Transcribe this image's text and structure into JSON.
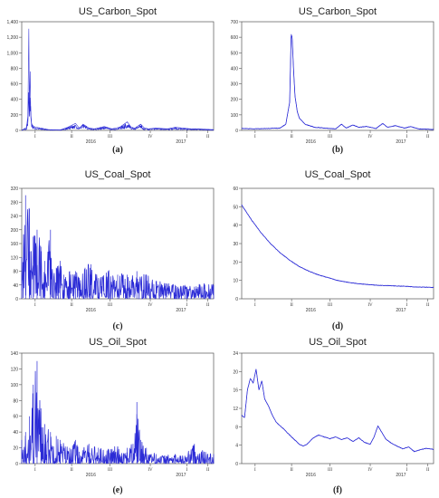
{
  "chart_data": [
    {
      "type": "line",
      "panel_label": "(a)",
      "title": "US_Carbon_Spot",
      "x_quarter_labels": [
        "I",
        "II",
        "III",
        "IV",
        "I",
        "II"
      ],
      "x_year_labels": [
        "2016",
        "2017"
      ],
      "ylim": [
        0,
        1400
      ],
      "yticks": [
        0,
        200,
        400,
        600,
        800,
        1000,
        1200,
        1400
      ],
      "ytick_labels": [
        "0",
        "200",
        "400",
        "600",
        "800",
        "1,000",
        "1,200",
        "1,400"
      ],
      "line_color": "#2b2bd6",
      "series": [
        {
          "style": "spiky",
          "x": [
            0.0,
            0.025,
            0.032,
            0.037,
            0.04,
            0.044,
            0.047,
            0.051,
            0.056,
            0.062,
            0.075,
            0.1,
            0.14,
            0.2,
            0.24,
            0.28,
            0.3,
            0.32,
            0.35,
            0.38,
            0.43,
            0.47,
            0.51,
            0.55,
            0.57,
            0.59,
            0.62,
            0.64,
            0.66,
            0.7,
            0.76,
            0.8,
            0.84,
            0.88,
            0.92,
            1.0
          ],
          "y": [
            0,
            40,
            180,
            1310,
            300,
            760,
            230,
            90,
            70,
            50,
            40,
            30,
            10,
            5,
            40,
            90,
            30,
            80,
            30,
            20,
            50,
            20,
            40,
            110,
            40,
            30,
            80,
            30,
            20,
            30,
            20,
            40,
            30,
            20,
            20,
            10
          ]
        }
      ]
    },
    {
      "type": "line",
      "panel_label": "(b)",
      "title": "US_Carbon_Spot",
      "x_quarter_labels": [
        "I",
        "II",
        "III",
        "IV",
        "I",
        "II"
      ],
      "x_year_labels": [
        "2016",
        "2017"
      ],
      "ylim": [
        0,
        700
      ],
      "yticks": [
        0,
        100,
        200,
        300,
        400,
        500,
        600,
        700
      ],
      "ytick_labels": [
        "0",
        "100",
        "200",
        "300",
        "400",
        "500",
        "600",
        "700"
      ],
      "line_color": "#2b2bd6",
      "series": [
        {
          "style": "smooth",
          "x": [
            0.0,
            0.06,
            0.13,
            0.2,
            0.23,
            0.25,
            0.258,
            0.263,
            0.27,
            0.278,
            0.29,
            0.3,
            0.33,
            0.38,
            0.43,
            0.49,
            0.52,
            0.545,
            0.58,
            0.61,
            0.65,
            0.7,
            0.735,
            0.76,
            0.8,
            0.85,
            0.88,
            0.92,
            0.96,
            1.0
          ],
          "y": [
            12,
            10,
            12,
            15,
            40,
            180,
            620,
            600,
            400,
            220,
            120,
            80,
            40,
            20,
            15,
            10,
            40,
            15,
            35,
            20,
            25,
            12,
            45,
            20,
            30,
            15,
            25,
            10,
            8,
            6
          ]
        }
      ]
    },
    {
      "type": "line",
      "panel_label": "(c)",
      "title": "US_Coal_Spot",
      "x_quarter_labels": [
        "I",
        "II",
        "III",
        "IV",
        "I",
        "II"
      ],
      "x_year_labels": [
        "2016",
        "2017"
      ],
      "ylim": [
        0,
        320
      ],
      "yticks": [
        0,
        40,
        80,
        120,
        160,
        200,
        240,
        280,
        320
      ],
      "ytick_labels": [
        "0",
        "40",
        "80",
        "120",
        "160",
        "200",
        "240",
        "280",
        "320"
      ],
      "line_color": "#2b2bd6",
      "series": [
        {
          "style": "noisy",
          "x": [
            0.0,
            0.02,
            0.04,
            0.06,
            0.08,
            0.1,
            0.12,
            0.15,
            0.18,
            0.2,
            0.22,
            0.25,
            0.28,
            0.3,
            0.33,
            0.36,
            0.4,
            0.45,
            0.5,
            0.55,
            0.6,
            0.65,
            0.7,
            0.75,
            0.8,
            0.85,
            0.9,
            0.95,
            1.0
          ],
          "y": [
            120,
            300,
            260,
            180,
            200,
            150,
            110,
            200,
            90,
            110,
            70,
            80,
            80,
            60,
            90,
            100,
            60,
            80,
            70,
            70,
            80,
            70,
            50,
            45,
            40,
            40,
            35,
            45,
            40
          ]
        }
      ]
    },
    {
      "type": "line",
      "panel_label": "(d)",
      "title": "US_Coal_Spot",
      "x_quarter_labels": [
        "I",
        "II",
        "III",
        "IV",
        "I",
        "II"
      ],
      "x_year_labels": [
        "2016",
        "2017"
      ],
      "ylim": [
        0,
        60
      ],
      "yticks": [
        0,
        10,
        20,
        30,
        40,
        50,
        60
      ],
      "ytick_labels": [
        "0",
        "10",
        "20",
        "30",
        "40",
        "50",
        "60"
      ],
      "line_color": "#2b2bd6",
      "series": [
        {
          "style": "smooth",
          "x": [
            0.0,
            0.05,
            0.1,
            0.15,
            0.2,
            0.25,
            0.3,
            0.35,
            0.4,
            0.45,
            0.5,
            0.55,
            0.6,
            0.65,
            0.7,
            0.75,
            0.8,
            0.85,
            0.9,
            0.95,
            1.0
          ],
          "y": [
            51,
            43,
            36,
            30,
            25,
            21,
            17.5,
            15,
            13,
            11.5,
            10,
            9,
            8.3,
            7.8,
            7.4,
            7.2,
            7.0,
            6.8,
            6.5,
            6.3,
            6.2
          ]
        }
      ]
    },
    {
      "type": "line",
      "panel_label": "(e)",
      "title": "US_Oil_Spot",
      "x_quarter_labels": [
        "I",
        "II",
        "III",
        "IV",
        "I",
        "II"
      ],
      "x_year_labels": [
        "2016",
        "2017"
      ],
      "ylim": [
        0,
        140
      ],
      "yticks": [
        0,
        20,
        40,
        60,
        80,
        100,
        120,
        140
      ],
      "ytick_labels": [
        "0",
        "20",
        "40",
        "60",
        "80",
        "100",
        "120",
        "140"
      ],
      "line_color": "#2b2bd6",
      "series": [
        {
          "style": "noisy",
          "x": [
            0.0,
            0.02,
            0.04,
            0.06,
            0.08,
            0.1,
            0.12,
            0.15,
            0.18,
            0.2,
            0.25,
            0.28,
            0.3,
            0.35,
            0.4,
            0.45,
            0.5,
            0.55,
            0.58,
            0.6,
            0.62,
            0.65,
            0.7,
            0.75,
            0.8,
            0.85,
            0.9,
            0.95,
            1.0
          ],
          "y": [
            30,
            40,
            60,
            100,
            130,
            70,
            50,
            40,
            35,
            30,
            20,
            30,
            15,
            25,
            20,
            18,
            22,
            20,
            25,
            78,
            30,
            20,
            12,
            10,
            12,
            10,
            25,
            15,
            12
          ]
        }
      ]
    },
    {
      "type": "line",
      "panel_label": "(f)",
      "title": "US_Oil_Spot",
      "x_quarter_labels": [
        "I",
        "II",
        "III",
        "IV",
        "I",
        "II"
      ],
      "x_year_labels": [
        "2016",
        "2017"
      ],
      "ylim": [
        0,
        24
      ],
      "yticks": [
        0,
        4,
        8,
        12,
        16,
        20,
        24
      ],
      "ytick_labels": [
        "0",
        "4",
        "8",
        "12",
        "16",
        "20",
        "24"
      ],
      "line_color": "#2b2bd6",
      "series": [
        {
          "style": "smooth",
          "x": [
            0.0,
            0.015,
            0.03,
            0.045,
            0.06,
            0.075,
            0.09,
            0.105,
            0.12,
            0.14,
            0.16,
            0.18,
            0.2,
            0.22,
            0.24,
            0.26,
            0.28,
            0.3,
            0.32,
            0.34,
            0.37,
            0.4,
            0.43,
            0.46,
            0.49,
            0.52,
            0.55,
            0.58,
            0.61,
            0.64,
            0.67,
            0.69,
            0.71,
            0.73,
            0.75,
            0.78,
            0.81,
            0.84,
            0.87,
            0.9,
            0.93,
            0.96,
            1.0
          ],
          "y": [
            10.5,
            10,
            16,
            18.5,
            17.5,
            20.5,
            16,
            18,
            14,
            12.5,
            10.5,
            9,
            8.2,
            7.5,
            6.6,
            5.8,
            5,
            4.2,
            3.8,
            4.2,
            5.5,
            6.2,
            5.8,
            5.4,
            5.8,
            5.2,
            5.6,
            4.8,
            5.6,
            4.6,
            4.2,
            5.8,
            8.2,
            6.8,
            5.4,
            4.4,
            3.8,
            3.2,
            3.6,
            2.6,
            3,
            3.3,
            3.1
          ]
        }
      ]
    }
  ]
}
